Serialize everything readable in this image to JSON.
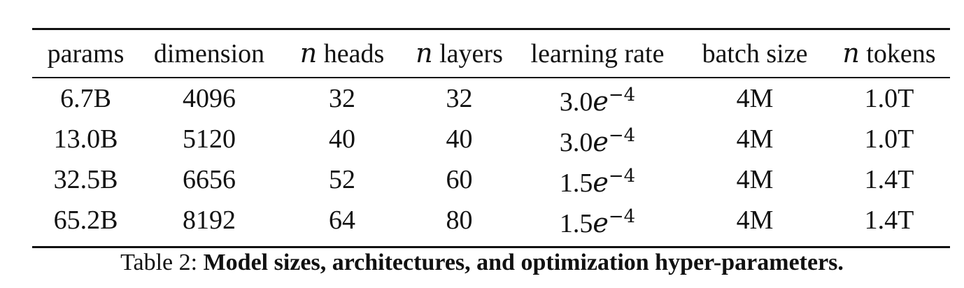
{
  "table": {
    "headers": {
      "params": "params",
      "dimension": "dimension",
      "n_symbol": "n",
      "heads": "heads",
      "layers": "layers",
      "learning_rate": "learning rate",
      "batch_size": "batch size",
      "tokens": "tokens"
    },
    "rows": [
      {
        "params": "6.7B",
        "dimension": "4096",
        "heads": "32",
        "layers": "32",
        "lr_mantissa": "3.0",
        "lr_e": "e",
        "lr_exp": "−4",
        "batch_size": "4M",
        "tokens": "1.0T"
      },
      {
        "params": "13.0B",
        "dimension": "5120",
        "heads": "40",
        "layers": "40",
        "lr_mantissa": "3.0",
        "lr_e": "e",
        "lr_exp": "−4",
        "batch_size": "4M",
        "tokens": "1.0T"
      },
      {
        "params": "32.5B",
        "dimension": "6656",
        "heads": "52",
        "layers": "60",
        "lr_mantissa": "1.5",
        "lr_e": "e",
        "lr_exp": "−4",
        "batch_size": "4M",
        "tokens": "1.4T"
      },
      {
        "params": "65.2B",
        "dimension": "8192",
        "heads": "64",
        "layers": "80",
        "lr_mantissa": "1.5",
        "lr_e": "e",
        "lr_exp": "−4",
        "batch_size": "4M",
        "tokens": "1.4T"
      }
    ]
  },
  "caption": {
    "label": "Table 2:",
    "text": "Model sizes, architectures, and optimization hyper-parameters."
  }
}
